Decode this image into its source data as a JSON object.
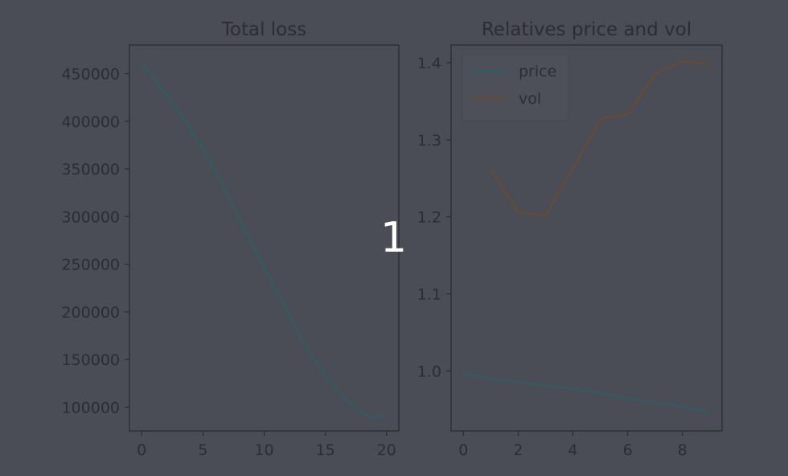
{
  "overlay_label": "1",
  "chart_data": [
    {
      "type": "line",
      "title": "Total loss",
      "xlabel": "",
      "ylabel": "",
      "xlim": [
        -1,
        21
      ],
      "ylim": [
        75000,
        480000
      ],
      "xticks": [
        0,
        5,
        10,
        15,
        20
      ],
      "yticks": [
        100000,
        150000,
        200000,
        250000,
        300000,
        350000,
        400000,
        450000
      ],
      "grid": false,
      "series": [
        {
          "color": "#2e5e63",
          "x": [
            0,
            1,
            2,
            3,
            4,
            5,
            6,
            7,
            8,
            9,
            10,
            11,
            12,
            13,
            14,
            15,
            16,
            17,
            18,
            19,
            20
          ],
          "y": [
            462000,
            445000,
            428000,
            411000,
            392000,
            371000,
            348000,
            323000,
            297000,
            272000,
            247000,
            222000,
            198000,
            174000,
            152000,
            133000,
            118000,
            104000,
            94000,
            88000,
            93000
          ]
        }
      ]
    },
    {
      "type": "line",
      "title": "Relatives price and vol",
      "xlabel": "",
      "ylabel": "",
      "xlim": [
        -0.45,
        9.45
      ],
      "ylim": [
        0.922,
        1.423
      ],
      "xticks": [
        0,
        2,
        4,
        6,
        8
      ],
      "yticks": [
        1.0,
        1.1,
        1.2,
        1.3,
        1.4
      ],
      "grid": false,
      "legend": "upper-left",
      "series": [
        {
          "name": "price",
          "color": "#2e5e63",
          "x": [
            0,
            1,
            2,
            3,
            4,
            5,
            6,
            7,
            8,
            9
          ],
          "y": [
            0.996,
            0.99,
            0.986,
            0.981,
            0.977,
            0.971,
            0.964,
            0.959,
            0.954,
            0.946
          ]
        },
        {
          "name": "vol",
          "color": "#6b4a33",
          "x": [
            1,
            2,
            3,
            4,
            5,
            6,
            7,
            8,
            9
          ],
          "y": [
            1.262,
            1.206,
            1.201,
            1.263,
            1.327,
            1.333,
            1.385,
            1.402,
            1.398
          ]
        }
      ]
    }
  ]
}
